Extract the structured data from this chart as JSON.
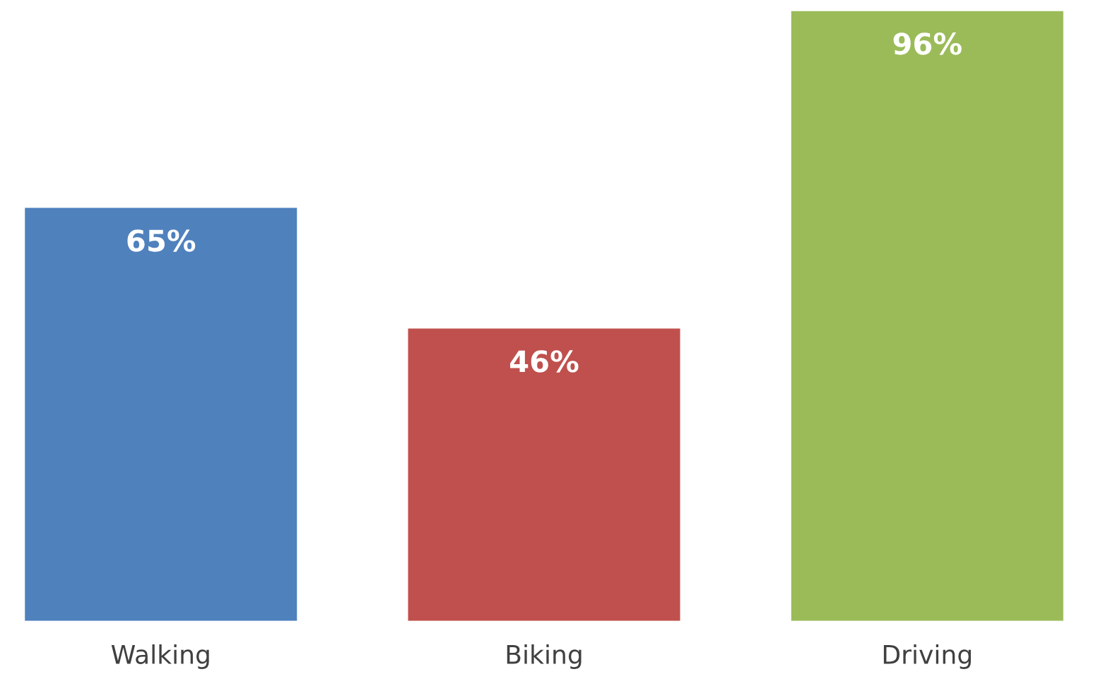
{
  "chart_data": {
    "type": "bar",
    "categories": [
      "Walking",
      "Biking",
      "Driving"
    ],
    "values": [
      65,
      46,
      96
    ],
    "colors": [
      "#4f81bd",
      "#c0504d",
      "#9bbb59"
    ],
    "value_labels": [
      "65%",
      "46%",
      "96%"
    ],
    "grid": false,
    "legend": false
  }
}
